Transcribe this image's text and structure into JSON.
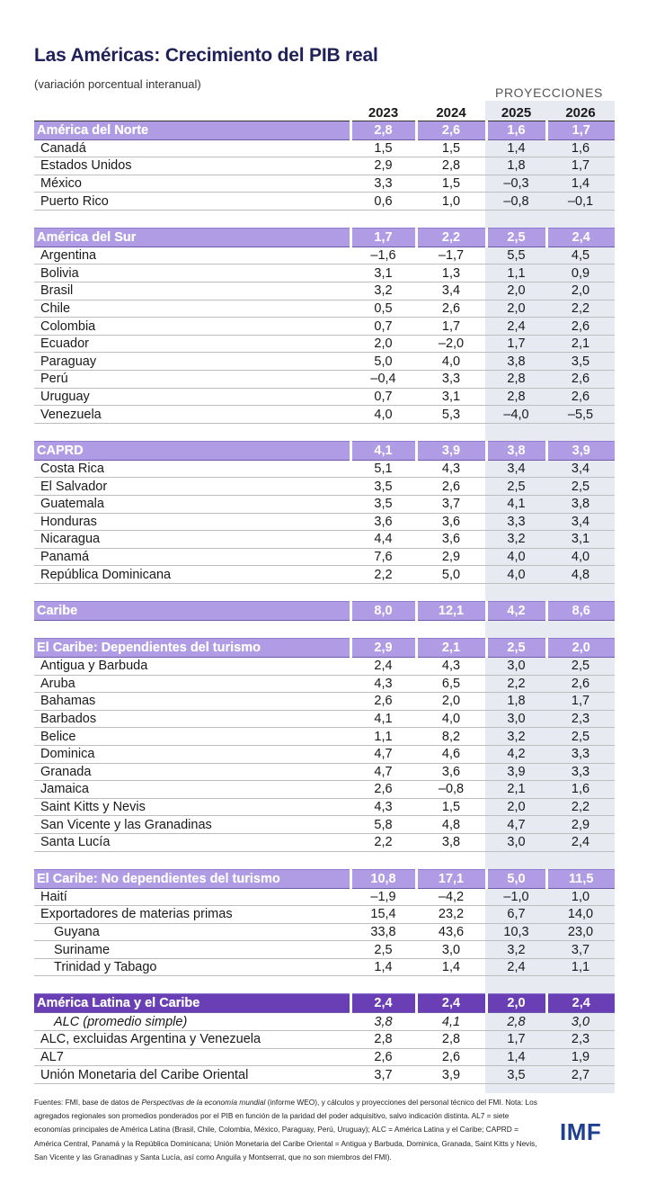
{
  "title": "Las Américas: Crecimiento del PIB real",
  "subtitle": "(variación porcentual interanual)",
  "projections_label": "PROYECCIONES",
  "years": [
    "2023",
    "2024",
    "2025",
    "2026"
  ],
  "colors": {
    "group_header": "#b09ce4",
    "total_header": "#6a3fb5",
    "projection_band": "#e8eaf2",
    "title": "#21215a",
    "logo": "#1f3f8f"
  },
  "chart_data": {
    "type": "table",
    "title": "Las Américas: Crecimiento del PIB real",
    "subtitle": "(variación porcentual interanual)",
    "columns": [
      "2023",
      "2024",
      "2025",
      "2026"
    ],
    "projection_columns": [
      "2025",
      "2026"
    ],
    "groups": [
      {
        "name": "América del Norte",
        "values": [
          "2,8",
          "2,6",
          "1,6",
          "1,7"
        ],
        "rows": [
          {
            "name": "Canadá",
            "values": [
              "1,5",
              "1,5",
              "1,4",
              "1,6"
            ]
          },
          {
            "name": "Estados Unidos",
            "values": [
              "2,9",
              "2,8",
              "1,8",
              "1,7"
            ]
          },
          {
            "name": "México",
            "values": [
              "3,3",
              "1,5",
              "–0,3",
              "1,4"
            ]
          },
          {
            "name": "Puerto Rico",
            "values": [
              "0,6",
              "1,0",
              "–0,8",
              "–0,1"
            ]
          }
        ]
      },
      {
        "name": "América del Sur",
        "values": [
          "1,7",
          "2,2",
          "2,5",
          "2,4"
        ],
        "rows": [
          {
            "name": "Argentina",
            "values": [
              "–1,6",
              "–1,7",
              "5,5",
              "4,5"
            ]
          },
          {
            "name": "Bolivia",
            "values": [
              "3,1",
              "1,3",
              "1,1",
              "0,9"
            ]
          },
          {
            "name": "Brasil",
            "values": [
              "3,2",
              "3,4",
              "2,0",
              "2,0"
            ]
          },
          {
            "name": "Chile",
            "values": [
              "0,5",
              "2,6",
              "2,0",
              "2,2"
            ]
          },
          {
            "name": "Colombia",
            "values": [
              "0,7",
              "1,7",
              "2,4",
              "2,6"
            ]
          },
          {
            "name": "Ecuador",
            "values": [
              "2,0",
              "–2,0",
              "1,7",
              "2,1"
            ]
          },
          {
            "name": "Paraguay",
            "values": [
              "5,0",
              "4,0",
              "3,8",
              "3,5"
            ]
          },
          {
            "name": "Perú",
            "values": [
              "–0,4",
              "3,3",
              "2,8",
              "2,6"
            ]
          },
          {
            "name": "Uruguay",
            "values": [
              "0,7",
              "3,1",
              "2,8",
              "2,6"
            ]
          },
          {
            "name": "Venezuela",
            "values": [
              "4,0",
              "5,3",
              "–4,0",
              "–5,5"
            ]
          }
        ]
      },
      {
        "name": "CAPRD",
        "values": [
          "4,1",
          "3,9",
          "3,8",
          "3,9"
        ],
        "rows": [
          {
            "name": "Costa Rica",
            "values": [
              "5,1",
              "4,3",
              "3,4",
              "3,4"
            ]
          },
          {
            "name": "El Salvador",
            "values": [
              "3,5",
              "2,6",
              "2,5",
              "2,5"
            ]
          },
          {
            "name": "Guatemala",
            "values": [
              "3,5",
              "3,7",
              "4,1",
              "3,8"
            ]
          },
          {
            "name": "Honduras",
            "values": [
              "3,6",
              "3,6",
              "3,3",
              "3,4"
            ]
          },
          {
            "name": "Nicaragua",
            "values": [
              "4,4",
              "3,6",
              "3,2",
              "3,1"
            ]
          },
          {
            "name": "Panamá",
            "values": [
              "7,6",
              "2,9",
              "4,0",
              "4,0"
            ]
          },
          {
            "name": "República Dominicana",
            "values": [
              "2,2",
              "5,0",
              "4,0",
              "4,8"
            ]
          }
        ]
      },
      {
        "name": "Caribe",
        "values": [
          "8,0",
          "12,1",
          "4,2",
          "8,6"
        ],
        "rows": []
      },
      {
        "name": "El Caribe: Dependientes del turismo",
        "values": [
          "2,9",
          "2,1",
          "2,5",
          "2,0"
        ],
        "rows": [
          {
            "name": "Antigua y Barbuda",
            "values": [
              "2,4",
              "4,3",
              "3,0",
              "2,5"
            ]
          },
          {
            "name": "Aruba",
            "values": [
              "4,3",
              "6,5",
              "2,2",
              "2,6"
            ]
          },
          {
            "name": "Bahamas",
            "values": [
              "2,6",
              "2,0",
              "1,8",
              "1,7"
            ]
          },
          {
            "name": "Barbados",
            "values": [
              "4,1",
              "4,0",
              "3,0",
              "2,3"
            ]
          },
          {
            "name": "Belice",
            "values": [
              "1,1",
              "8,2",
              "3,2",
              "2,5"
            ]
          },
          {
            "name": "Dominica",
            "values": [
              "4,7",
              "4,6",
              "4,2",
              "3,3"
            ]
          },
          {
            "name": "Granada",
            "values": [
              "4,7",
              "3,6",
              "3,9",
              "3,3"
            ]
          },
          {
            "name": "Jamaica",
            "values": [
              "2,6",
              "–0,8",
              "2,1",
              "1,6"
            ]
          },
          {
            "name": "Saint Kitts y Nevis",
            "values": [
              "4,3",
              "1,5",
              "2,0",
              "2,2"
            ]
          },
          {
            "name": "San Vicente y las Granadinas",
            "values": [
              "5,8",
              "4,8",
              "4,7",
              "2,9"
            ]
          },
          {
            "name": "Santa Lucía",
            "values": [
              "2,2",
              "3,8",
              "3,0",
              "2,4"
            ]
          }
        ]
      },
      {
        "name": "El Caribe: No dependientes del turismo",
        "values": [
          "10,8",
          "17,1",
          "5,0",
          "11,5"
        ],
        "rows": [
          {
            "name": "Haití",
            "values": [
              "–1,9",
              "–4,2",
              "–1,0",
              "1,0"
            ]
          },
          {
            "name": "Exportadores de materias primas",
            "values": [
              "15,4",
              "23,2",
              "6,7",
              "14,0"
            ]
          },
          {
            "name": "Guyana",
            "values": [
              "33,8",
              "43,6",
              "10,3",
              "23,0"
            ],
            "indent": true
          },
          {
            "name": "Suriname",
            "values": [
              "2,5",
              "3,0",
              "3,2",
              "3,7"
            ],
            "indent": true
          },
          {
            "name": "Trinidad y Tabago",
            "values": [
              "1,4",
              "1,4",
              "2,4",
              "1,1"
            ],
            "indent": true
          }
        ]
      },
      {
        "name": "América Latina y el Caribe",
        "values": [
          "2,4",
          "2,4",
          "2,0",
          "2,4"
        ],
        "dark": true,
        "rows": [
          {
            "name": "ALC (promedio simple)",
            "values": [
              "3,8",
              "4,1",
              "2,8",
              "3,0"
            ],
            "italic": true,
            "indent": true
          },
          {
            "name": "ALC, excluidas Argentina y Venezuela",
            "values": [
              "2,8",
              "2,8",
              "1,7",
              "2,3"
            ]
          },
          {
            "name": "AL7",
            "values": [
              "2,6",
              "2,6",
              "1,4",
              "1,9"
            ]
          },
          {
            "name": "Unión Monetaria del Caribe Oriental",
            "values": [
              "3,7",
              "3,9",
              "3,5",
              "2,7"
            ]
          }
        ]
      }
    ]
  },
  "footnote": {
    "source_prefix": "Fuentes: FMI, base de datos de ",
    "source_italic": "Perspectivas de la economía mundial",
    "source_suffix": " (informe WEO), y cálculos y proyecciones del personal técnico del FMI. Nota: Los agregados regionales son promedios ponderados por el PIB en función de la paridad del poder adquisitivo, salvo indicación distinta. AL7 = siete economías principales de América Latina (Brasil, Chile, Colombia, México, Paraguay, Perú, Uruguay); ALC = América Latina y el Caribe; CAPRD = América Central, Panamá y la República Dominicana; Unión Monetaria del Caribe Oriental = Antigua y Barbuda, Dominica, Granada, Saint Kitts y Nevis, San Vicente y las Granadinas y Santa Lucía, así como Anguila y Montserrat, que no son miembros del FMI)."
  },
  "logo": "IMF"
}
